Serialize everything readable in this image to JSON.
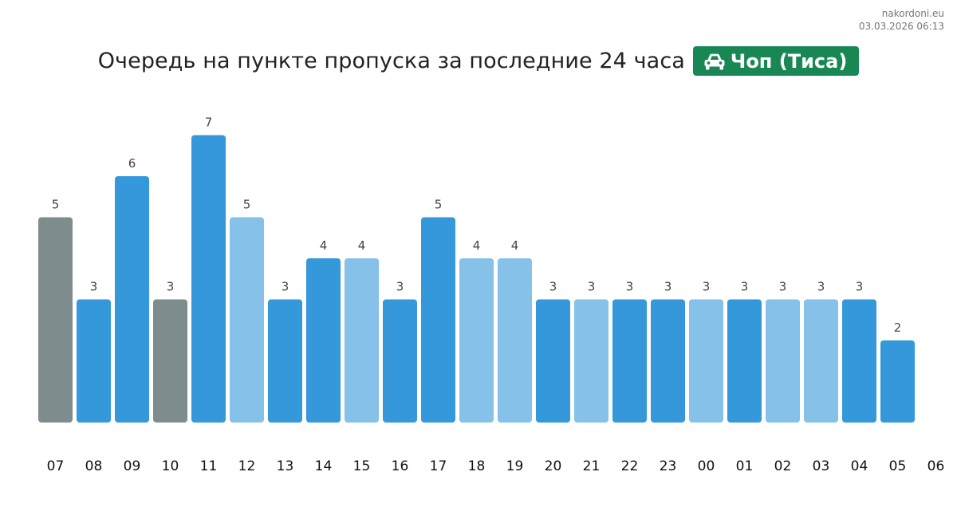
{
  "site": {
    "name": "nakordoni.eu",
    "timestamp": "03.03.2026 06:13"
  },
  "title": {
    "text": "Очередь на пункте пропуска за последние 24 часа",
    "badge_label": "Чоп (Тиса)",
    "badge_icon": "car-icon",
    "badge_color": "#198754"
  },
  "colors": {
    "gray": "#7f8c8d",
    "blue": "#3498db",
    "light_blue": "#85c1e9"
  },
  "chart_data": {
    "type": "bar",
    "categories": [
      "07",
      "08",
      "09",
      "10",
      "11",
      "12",
      "13",
      "14",
      "15",
      "16",
      "17",
      "18",
      "19",
      "20",
      "21",
      "22",
      "23",
      "00",
      "01",
      "02",
      "03",
      "04",
      "05"
    ],
    "extra_tick_labels": [
      "06"
    ],
    "values": [
      5,
      3,
      6,
      3,
      7,
      5,
      3,
      4,
      4,
      3,
      5,
      4,
      4,
      3,
      3,
      3,
      3,
      3,
      3,
      3,
      3,
      3,
      2
    ],
    "bar_color_keys": [
      "gray",
      "blue",
      "blue",
      "gray",
      "blue",
      "light_blue",
      "blue",
      "blue",
      "light_blue",
      "blue",
      "blue",
      "light_blue",
      "light_blue",
      "blue",
      "light_blue",
      "blue",
      "blue",
      "light_blue",
      "blue",
      "light_blue",
      "light_blue",
      "blue",
      "blue"
    ],
    "ylim": [
      0,
      7
    ],
    "xlabel": "",
    "ylabel": "",
    "grid": false,
    "data_labels": true
  }
}
